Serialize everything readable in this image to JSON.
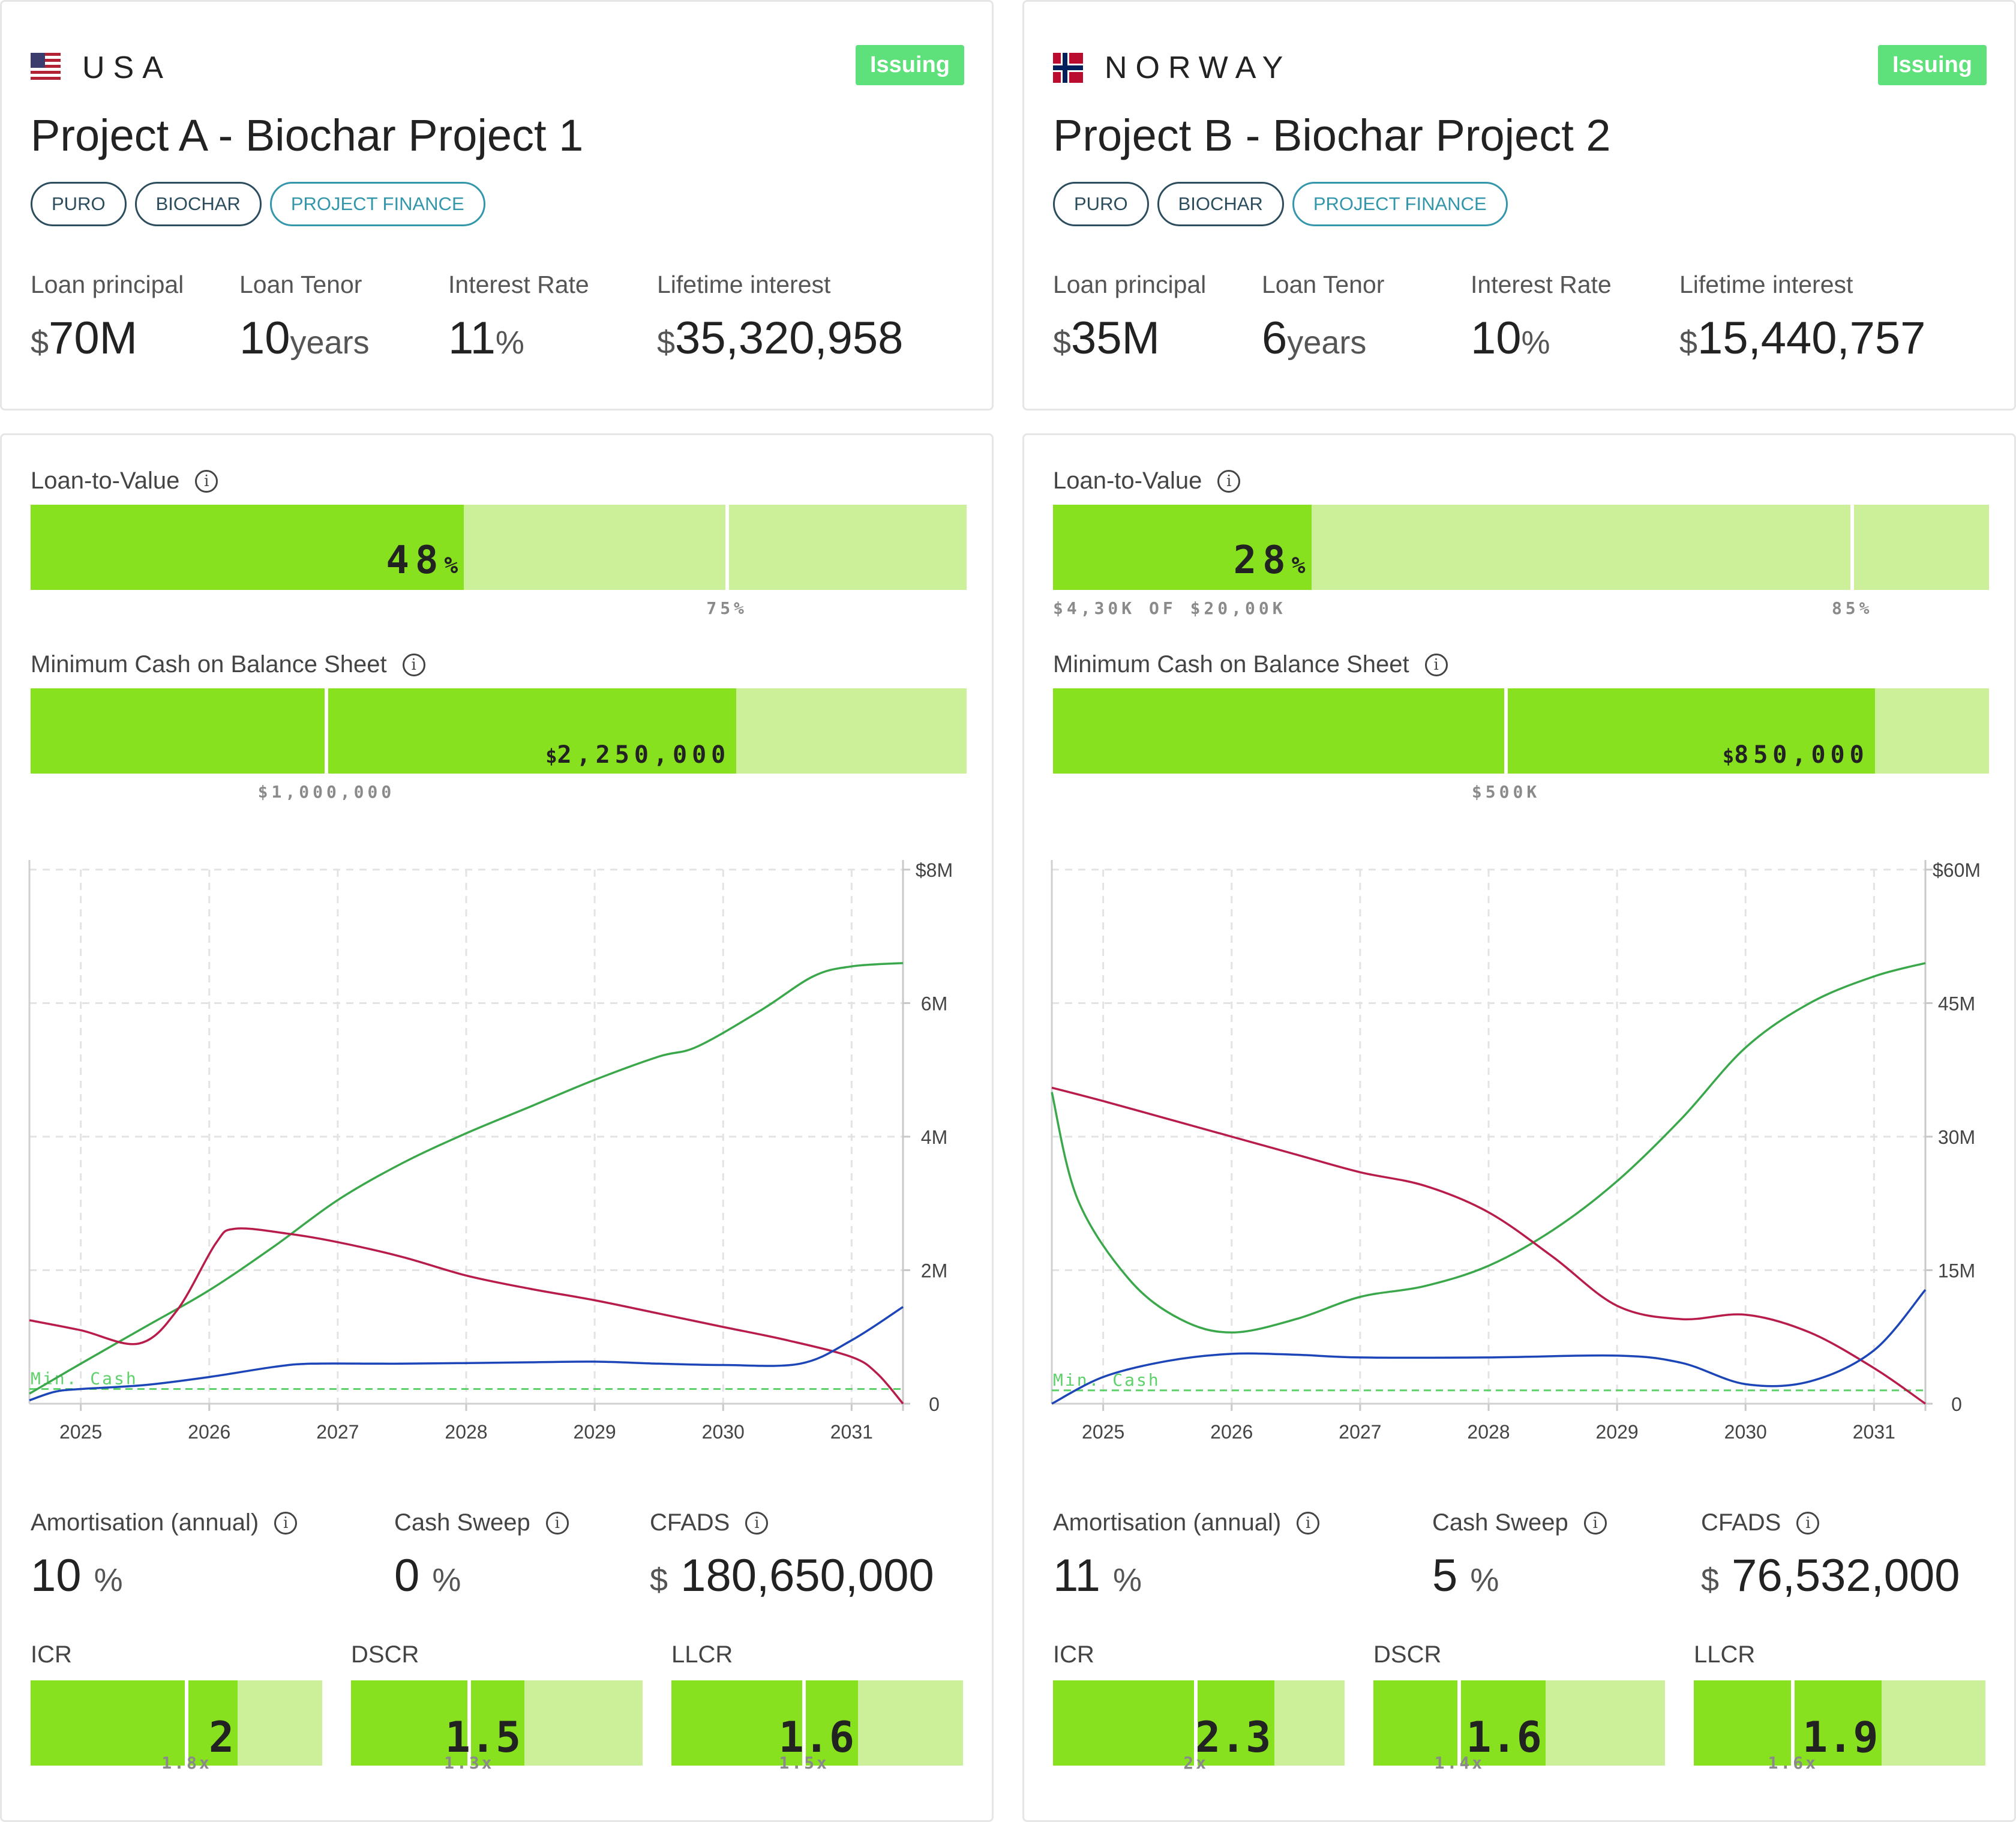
{
  "projects": [
    {
      "country": "USA",
      "status": "Issuing",
      "title": "Project A - Biochar Project 1",
      "tags": [
        "PURO",
        "BIOCHAR",
        "PROJECT FINANCE"
      ],
      "stats": {
        "principal_label": "Loan principal",
        "principal_currency": "$",
        "principal_value": "70M",
        "tenor_label": "Loan Tenor",
        "tenor_value": "10",
        "tenor_unit": "years",
        "rate_label": "Interest Rate",
        "rate_value": "11",
        "rate_unit": "%",
        "interest_label": "Lifetime interest",
        "interest_currency": "$",
        "interest_value": "35,320,958"
      },
      "ltv": {
        "label": "Loan-to-Value",
        "value": "48",
        "unit": "%",
        "fill_pct": 46.3,
        "threshold_pct": 74.4,
        "threshold_label": "75%",
        "sub_label": ""
      },
      "min_cash": {
        "label": "Minimum Cash on Balance Sheet",
        "currency": "$",
        "value": "2,250,000",
        "fill_pct": 75.4,
        "threshold_pct": 31.6,
        "threshold_label": "$1,000,000"
      },
      "chart_data": {
        "type": "line",
        "x_ticks": [
          "2025",
          "2026",
          "2027",
          "2028",
          "2029",
          "2030",
          "2031"
        ],
        "y_ticks": [
          "$8M",
          "6M",
          "4M",
          "2M",
          "0"
        ],
        "ylim": [
          0,
          8
        ],
        "min_cash_label": "Min. Cash",
        "min_cash_level": 0.22,
        "series": [
          {
            "name": "green",
            "color": "#3aa84a",
            "points": [
              [
                2024.6,
                0.15
              ],
              [
                2025.0,
                0.6
              ],
              [
                2025.5,
                1.15
              ],
              [
                2026.0,
                1.7
              ],
              [
                2026.5,
                2.35
              ],
              [
                2027.0,
                3.05
              ],
              [
                2027.5,
                3.6
              ],
              [
                2028.0,
                4.05
              ],
              [
                2028.5,
                4.45
              ],
              [
                2029.0,
                4.85
              ],
              [
                2029.5,
                5.2
              ],
              [
                2029.8,
                5.35
              ],
              [
                2030.3,
                5.9
              ],
              [
                2030.7,
                6.4
              ],
              [
                2031.0,
                6.55
              ],
              [
                2031.4,
                6.6
              ]
            ]
          },
          {
            "name": "red",
            "color": "#b81c4a",
            "points": [
              [
                2024.6,
                1.25
              ],
              [
                2025.0,
                1.1
              ],
              [
                2025.45,
                0.9
              ],
              [
                2025.75,
                1.4
              ],
              [
                2026.05,
                2.4
              ],
              [
                2026.2,
                2.62
              ],
              [
                2026.6,
                2.55
              ],
              [
                2027.0,
                2.42
              ],
              [
                2027.5,
                2.2
              ],
              [
                2028.0,
                1.92
              ],
              [
                2028.5,
                1.72
              ],
              [
                2029.0,
                1.55
              ],
              [
                2029.5,
                1.35
              ],
              [
                2030.0,
                1.15
              ],
              [
                2030.5,
                0.95
              ],
              [
                2031.0,
                0.7
              ],
              [
                2031.2,
                0.45
              ],
              [
                2031.4,
                0.0
              ]
            ]
          },
          {
            "name": "blue",
            "color": "#1c45b8",
            "points": [
              [
                2024.6,
                0.05
              ],
              [
                2024.8,
                0.18
              ],
              [
                2025.0,
                0.22
              ],
              [
                2025.5,
                0.28
              ],
              [
                2026.0,
                0.4
              ],
              [
                2026.5,
                0.55
              ],
              [
                2026.8,
                0.6
              ],
              [
                2027.5,
                0.6
              ],
              [
                2028.5,
                0.62
              ],
              [
                2029.0,
                0.63
              ],
              [
                2029.5,
                0.6
              ],
              [
                2030.0,
                0.58
              ],
              [
                2030.6,
                0.6
              ],
              [
                2031.0,
                0.95
              ],
              [
                2031.4,
                1.45
              ]
            ]
          }
        ]
      },
      "amort": {
        "label": "Amortisation (annual)",
        "value": "10",
        "unit": "%"
      },
      "sweep": {
        "label": "Cash Sweep",
        "value": "0",
        "unit": "%"
      },
      "cfads": {
        "label": "CFADS",
        "currency": "$",
        "value": "180,650,000"
      },
      "ratios": [
        {
          "label": "ICR",
          "value": "2",
          "threshold": "1.8x",
          "fill_pct": 71.0,
          "mark_pct": 53.5
        },
        {
          "label": "DSCR",
          "value": "1.5",
          "threshold": "1.3x",
          "fill_pct": 59.5,
          "mark_pct": 40.5
        },
        {
          "label": "LLCR",
          "value": "1.6",
          "threshold": "1.5x",
          "fill_pct": 64.0,
          "mark_pct": 45.5
        }
      ]
    },
    {
      "country": "NORWAY",
      "status": "Issuing",
      "title": "Project B - Biochar Project 2",
      "tags": [
        "PURO",
        "BIOCHAR",
        "PROJECT FINANCE"
      ],
      "stats": {
        "principal_label": "Loan principal",
        "principal_currency": "$",
        "principal_value": "35M",
        "tenor_label": "Loan Tenor",
        "tenor_value": "6",
        "tenor_unit": "years",
        "rate_label": "Interest Rate",
        "rate_value": "10",
        "rate_unit": "%",
        "interest_label": "Lifetime interest",
        "interest_currency": "$",
        "interest_value": "15,440,757"
      },
      "ltv": {
        "label": "Loan-to-Value",
        "value": "28",
        "unit": "%",
        "fill_pct": 27.6,
        "threshold_pct": 85.4,
        "threshold_label": "85%",
        "sub_label": "$4,30K OF $20,00K"
      },
      "min_cash": {
        "label": "Minimum Cash on Balance Sheet",
        "currency": "$",
        "value": "850,000",
        "fill_pct": 87.8,
        "threshold_pct": 48.4,
        "threshold_label": "$500K"
      },
      "chart_data": {
        "type": "line",
        "x_ticks": [
          "2025",
          "2026",
          "2027",
          "2028",
          "2029",
          "2030",
          "2031"
        ],
        "y_ticks": [
          "$60M",
          "45M",
          "30M",
          "15M",
          "0"
        ],
        "ylim": [
          0,
          60
        ],
        "min_cash_label": "Min. Cash",
        "min_cash_level": 1.5,
        "series": [
          {
            "name": "green",
            "color": "#3aa84a",
            "points": [
              [
                2024.6,
                35
              ],
              [
                2024.8,
                23
              ],
              [
                2025.2,
                14
              ],
              [
                2025.6,
                9.5
              ],
              [
                2026.0,
                8
              ],
              [
                2026.5,
                9.5
              ],
              [
                2027.0,
                12
              ],
              [
                2027.5,
                13.2
              ],
              [
                2028.0,
                15.5
              ],
              [
                2028.5,
                19.5
              ],
              [
                2029.0,
                25
              ],
              [
                2029.5,
                32
              ],
              [
                2030.0,
                40
              ],
              [
                2030.5,
                45
              ],
              [
                2031.0,
                48
              ],
              [
                2031.4,
                49.5
              ]
            ]
          },
          {
            "name": "red",
            "color": "#b81c4a",
            "points": [
              [
                2024.6,
                35.5
              ],
              [
                2025.0,
                34
              ],
              [
                2025.5,
                32
              ],
              [
                2026.0,
                30
              ],
              [
                2026.5,
                28
              ],
              [
                2027.0,
                26
              ],
              [
                2027.5,
                24.5
              ],
              [
                2028.0,
                21.5
              ],
              [
                2028.5,
                16.5
              ],
              [
                2029.0,
                11
              ],
              [
                2029.5,
                9.5
              ],
              [
                2030.0,
                10
              ],
              [
                2030.5,
                8
              ],
              [
                2031.0,
                4
              ],
              [
                2031.4,
                0
              ]
            ]
          },
          {
            "name": "blue",
            "color": "#1c45b8",
            "points": [
              [
                2024.6,
                0
              ],
              [
                2025.0,
                3
              ],
              [
                2025.5,
                4.8
              ],
              [
                2026.0,
                5.6
              ],
              [
                2026.5,
                5.5
              ],
              [
                2027.0,
                5.2
              ],
              [
                2028.0,
                5.2
              ],
              [
                2029.0,
                5.4
              ],
              [
                2029.5,
                4.6
              ],
              [
                2030.0,
                2.2
              ],
              [
                2030.5,
                2.5
              ],
              [
                2031.0,
                6
              ],
              [
                2031.4,
                12.8
              ]
            ]
          }
        ]
      },
      "amort": {
        "label": "Amortisation (annual)",
        "value": "11",
        "unit": "%"
      },
      "sweep": {
        "label": "Cash Sweep",
        "value": "5",
        "unit": "%"
      },
      "cfads": {
        "label": "CFADS",
        "currency": "$",
        "value": "76,532,000"
      },
      "ratios": [
        {
          "label": "ICR",
          "value": "2.3",
          "threshold": "2x",
          "fill_pct": 76.0,
          "mark_pct": 49.0
        },
        {
          "label": "DSCR",
          "value": "1.6",
          "threshold": "1.4x",
          "fill_pct": 59.0,
          "mark_pct": 29.5
        },
        {
          "label": "LLCR",
          "value": "1.9",
          "threshold": "1.6x",
          "fill_pct": 64.5,
          "mark_pct": 34.0
        }
      ]
    }
  ]
}
